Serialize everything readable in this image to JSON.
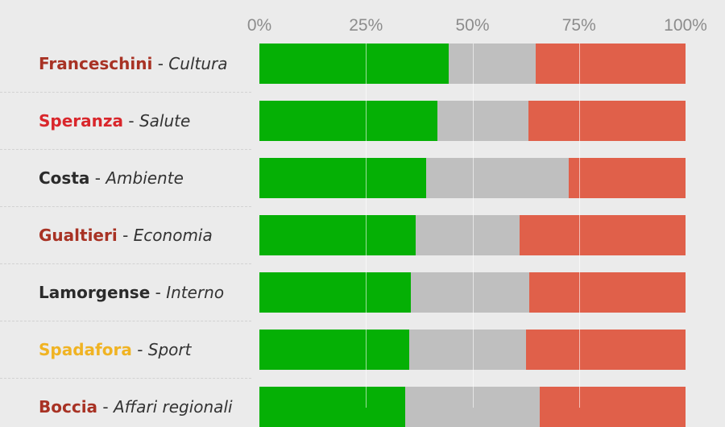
{
  "chart_data": {
    "type": "bar",
    "stacked": true,
    "orientation": "horizontal",
    "x_ticks": [
      "0%",
      "25%",
      "50%",
      "75%",
      "100%"
    ],
    "xlim": [
      0,
      100
    ],
    "grid": true,
    "legend": "none",
    "rows": [
      {
        "name": "Franceschini",
        "ministry": "Cultura",
        "name_color": "#a83224",
        "values": [
          44.5,
          20.3,
          35.2
        ]
      },
      {
        "name": "Speranza",
        "ministry": "Salute",
        "name_color": "#d9262b",
        "values": [
          41.7,
          21.4,
          36.9
        ]
      },
      {
        "name": "Costa",
        "ministry": "Ambiente",
        "name_color": "#2b2b2b",
        "values": [
          39.2,
          33.3,
          27.5
        ]
      },
      {
        "name": "Gualtieri",
        "ministry": "Economia",
        "name_color": "#a83224",
        "values": [
          36.7,
          24.4,
          38.9
        ]
      },
      {
        "name": "Lamorgense",
        "ministry": "Interno",
        "name_color": "#2b2b2b",
        "values": [
          35.6,
          27.8,
          36.6
        ]
      },
      {
        "name": "Spadafora",
        "ministry": "Sport",
        "name_color": "#f0b323",
        "values": [
          35.2,
          27.3,
          37.5
        ]
      },
      {
        "name": "Boccia",
        "ministry": "Affari regionali",
        "name_color": "#a83224",
        "values": [
          34.2,
          31.6,
          34.2
        ]
      }
    ],
    "segment_colors": [
      "#05b005",
      "#bfbfbf",
      "#e0604a"
    ],
    "separator": " - "
  }
}
